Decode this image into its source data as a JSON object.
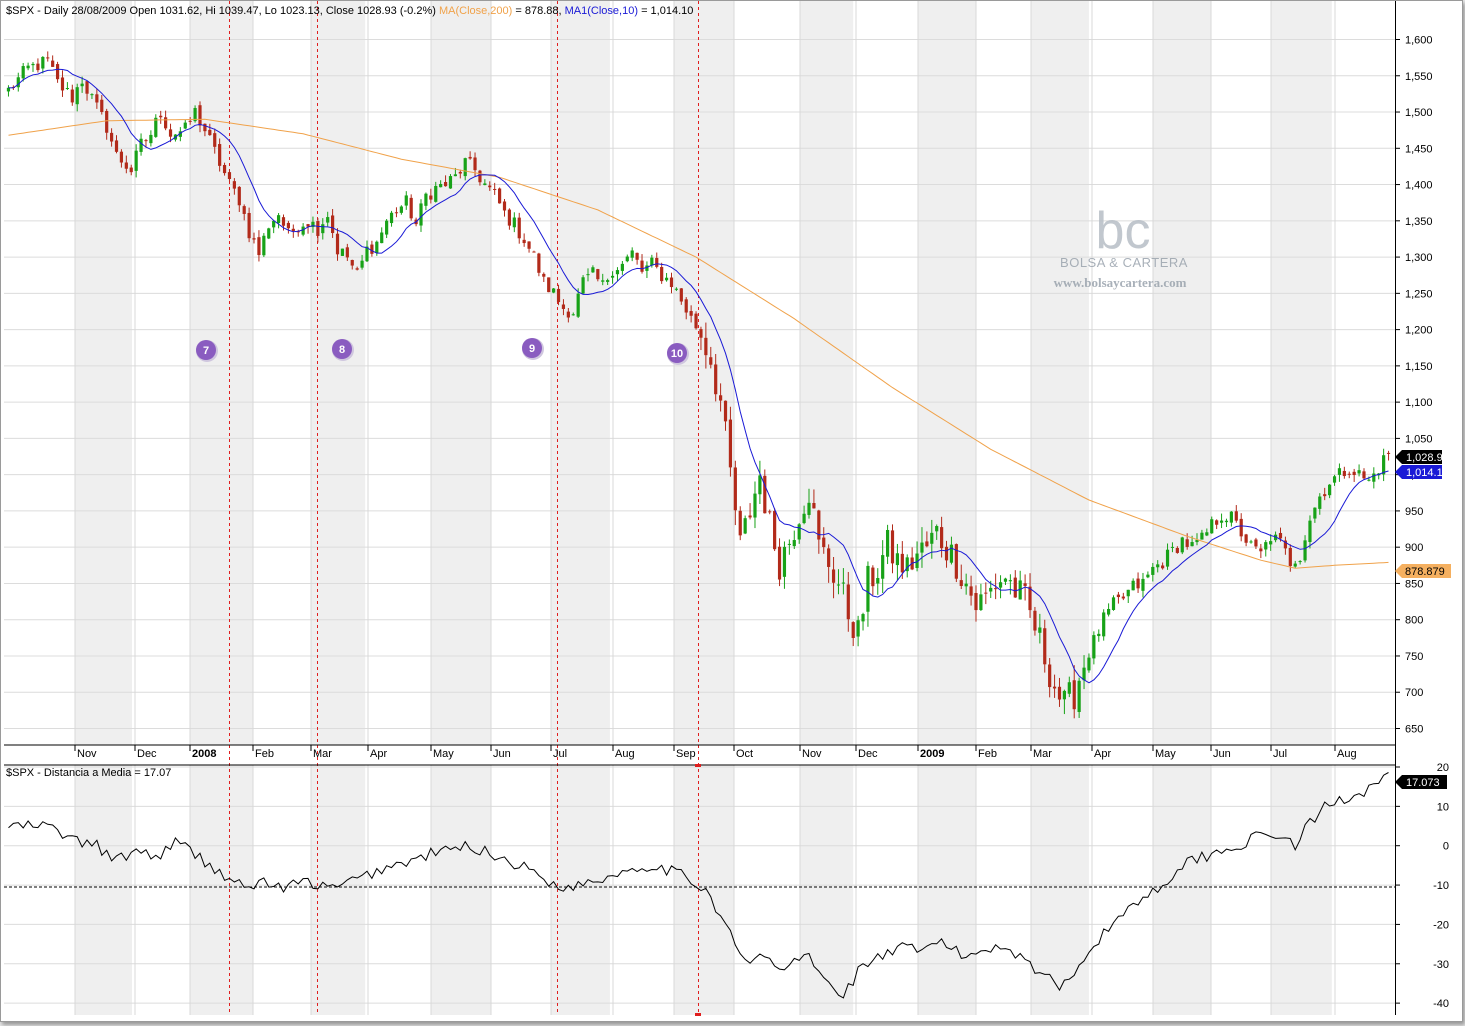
{
  "chart_data": [
    {
      "type": "candlestick",
      "title": "$SPX - Daily 28/08/2009 Open 1031.62, Hi 1039.47, Lo 1023.13, Close 1028.93 (-0.2%)",
      "symbol": "$SPX",
      "date": "28/08/2009",
      "last_bar": {
        "open": 1031.62,
        "high": 1039.47,
        "low": 1023.13,
        "close": 1028.93,
        "change_pct": -0.2
      },
      "legend": {
        "header": "$SPX - Daily 28/08/2009 Open 1031.62, Hi 1039.47, Lo 1023.13, Close 1028.93 (-0.2%)",
        "ma200": "MA(Close,200)",
        "ma200_value": "= 878.88,",
        "ma10": "MA1(Close,10)",
        "ma10_value": "= 1,014.10"
      },
      "ylim": [
        630,
        1620
      ],
      "yticks": [
        650,
        700,
        750,
        800,
        850,
        900,
        950,
        1000,
        1050,
        1100,
        1150,
        1200,
        1250,
        1300,
        1350,
        1400,
        1450,
        1500,
        1550,
        1600
      ],
      "ytick_labels": [
        "650",
        "700",
        "750",
        "800",
        "850",
        "900",
        "950",
        "1,000",
        "1,050",
        "1,100",
        "1,150",
        "1,200",
        "1,250",
        "1,300",
        "1,350",
        "1,400",
        "1,450",
        "1,500",
        "1,550",
        "1,600"
      ],
      "x_months": [
        {
          "label": "Nov",
          "bold": false
        },
        {
          "label": "Dec",
          "bold": false
        },
        {
          "label": "2008",
          "bold": true
        },
        {
          "label": "Feb",
          "bold": false
        },
        {
          "label": "Mar",
          "bold": false
        },
        {
          "label": "Apr",
          "bold": false
        },
        {
          "label": "May",
          "bold": false
        },
        {
          "label": "Jun",
          "bold": false
        },
        {
          "label": "Jul",
          "bold": false
        },
        {
          "label": "Aug",
          "bold": false
        },
        {
          "label": "Sep",
          "bold": false
        },
        {
          "label": "Oct",
          "bold": false
        },
        {
          "label": "Nov",
          "bold": false
        },
        {
          "label": "Dec",
          "bold": false
        },
        {
          "label": "2009",
          "bold": true
        },
        {
          "label": "Feb",
          "bold": false
        },
        {
          "label": "Mar",
          "bold": false
        },
        {
          "label": "Apr",
          "bold": false
        },
        {
          "label": "May",
          "bold": false
        },
        {
          "label": "Jun",
          "bold": false
        },
        {
          "label": "Jul",
          "bold": false
        },
        {
          "label": "Aug",
          "bold": false
        }
      ],
      "close_path": [
        [
          0,
          1530
        ],
        [
          4,
          1560
        ],
        [
          8,
          1570
        ],
        [
          10,
          1540
        ],
        [
          13,
          1520
        ],
        [
          15,
          1545
        ],
        [
          18,
          1505
        ],
        [
          20,
          1480
        ],
        [
          22,
          1440
        ],
        [
          25,
          1420
        ],
        [
          27,
          1455
        ],
        [
          29,
          1470
        ],
        [
          31,
          1500
        ],
        [
          33,
          1470
        ],
        [
          36,
          1475
        ],
        [
          38,
          1500
        ],
        [
          40,
          1475
        ],
        [
          42,
          1445
        ],
        [
          45,
          1400
        ],
        [
          47,
          1380
        ],
        [
          49,
          1335
        ],
        [
          51,
          1305
        ],
        [
          53,
          1345
        ],
        [
          55,
          1360
        ],
        [
          57,
          1330
        ],
        [
          59,
          1345
        ],
        [
          61,
          1350
        ],
        [
          63,
          1340
        ],
        [
          65,
          1360
        ],
        [
          67,
          1310
        ],
        [
          69,
          1300
        ],
        [
          71,
          1275
        ],
        [
          73,
          1310
        ],
        [
          75,
          1320
        ],
        [
          77,
          1350
        ],
        [
          79,
          1365
        ],
        [
          81,
          1375
        ],
        [
          83,
          1345
        ],
        [
          85,
          1385
        ],
        [
          87,
          1395
        ],
        [
          89,
          1400
        ],
        [
          91,
          1410
        ],
        [
          93,
          1430
        ],
        [
          95,
          1420
        ],
        [
          97,
          1400
        ],
        [
          99,
          1385
        ],
        [
          101,
          1360
        ],
        [
          103,
          1345
        ],
        [
          105,
          1325
        ],
        [
          107,
          1300
        ],
        [
          109,
          1265
        ],
        [
          111,
          1250
        ],
        [
          113,
          1230
        ],
        [
          115,
          1225
        ],
        [
          117,
          1265
        ],
        [
          119,
          1275
        ],
        [
          121,
          1260
        ],
        [
          123,
          1285
        ],
        [
          125,
          1290
        ],
        [
          127,
          1305
        ],
        [
          129,
          1280
        ],
        [
          131,
          1290
        ],
        [
          133,
          1275
        ],
        [
          135,
          1265
        ],
        [
          137,
          1240
        ],
        [
          139,
          1215
        ],
        [
          141,
          1195
        ],
        [
          143,
          1160
        ],
        [
          145,
          1100
        ],
        [
          147,
          1000
        ],
        [
          149,
          900
        ],
        [
          151,
          950
        ],
        [
          153,
          1000
        ],
        [
          155,
          930
        ],
        [
          157,
          880
        ],
        [
          159,
          910
        ],
        [
          161,
          950
        ],
        [
          163,
          980
        ],
        [
          165,
          900
        ],
        [
          167,
          880
        ],
        [
          169,
          850
        ],
        [
          171,
          810
        ],
        [
          173,
          780
        ],
        [
          175,
          850
        ],
        [
          177,
          870
        ],
        [
          179,
          900
        ],
        [
          181,
          880
        ],
        [
          183,
          870
        ],
        [
          185,
          890
        ],
        [
          187,
          900
        ],
        [
          189,
          920
        ],
        [
          191,
          900
        ],
        [
          193,
          880
        ],
        [
          195,
          850
        ],
        [
          197,
          820
        ],
        [
          199,
          830
        ],
        [
          201,
          850
        ],
        [
          203,
          860
        ],
        [
          205,
          840
        ],
        [
          207,
          825
        ],
        [
          209,
          790
        ],
        [
          211,
          750
        ],
        [
          213,
          710
        ],
        [
          215,
          680
        ],
        [
          217,
          700
        ],
        [
          219,
          740
        ],
        [
          221,
          770
        ],
        [
          223,
          800
        ],
        [
          225,
          820
        ],
        [
          227,
          830
        ],
        [
          229,
          845
        ],
        [
          231,
          850
        ],
        [
          233,
          870
        ],
        [
          235,
          880
        ],
        [
          237,
          895
        ],
        [
          239,
          910
        ],
        [
          241,
          900
        ],
        [
          243,
          910
        ],
        [
          245,
          930
        ],
        [
          247,
          945
        ],
        [
          249,
          940
        ],
        [
          251,
          920
        ],
        [
          253,
          900
        ],
        [
          255,
          890
        ],
        [
          257,
          915
        ],
        [
          259,
          905
        ],
        [
          261,
          880
        ],
        [
          263,
          890
        ],
        [
          265,
          940
        ],
        [
          267,
          970
        ],
        [
          269,
          990
        ],
        [
          271,
          1000
        ],
        [
          273,
          1010
        ],
        [
          275,
          1000
        ],
        [
          277,
          990
        ],
        [
          279,
          1010
        ],
        [
          281,
          1030
        ]
      ],
      "ma200_path": [
        [
          0,
          1468
        ],
        [
          20,
          1488
        ],
        [
          40,
          1490
        ],
        [
          60,
          1470
        ],
        [
          80,
          1435
        ],
        [
          100,
          1410
        ],
        [
          120,
          1365
        ],
        [
          140,
          1300
        ],
        [
          160,
          1215
        ],
        [
          180,
          1120
        ],
        [
          200,
          1035
        ],
        [
          220,
          965
        ],
        [
          240,
          915
        ],
        [
          255,
          882
        ],
        [
          262,
          871
        ],
        [
          270,
          875
        ],
        [
          281,
          879
        ]
      ],
      "markers": [
        {
          "label": "7",
          "color": "#8a5cc0"
        },
        {
          "label": "8",
          "color": "#8a5cc0"
        },
        {
          "label": "9",
          "color": "#8a5cc0"
        },
        {
          "label": "10",
          "color": "#8a5cc0"
        }
      ],
      "last_close_badge": "1,028.93",
      "ma10_badge": "1,014.1",
      "ma200_badge": "878.879",
      "colors": {
        "up": "#18a218",
        "down": "#b22a1a",
        "ma200": "#f0a24a",
        "ma10": "#1a1ad6",
        "grid": "#dcdcdc",
        "shade": "#eeeeee",
        "vline": "#e01e1e"
      }
    },
    {
      "type": "line",
      "title": "$SPX - Distancia a Media = 17.07",
      "ylim": [
        -42,
        20
      ],
      "yticks": [
        -40,
        -30,
        -20,
        -10,
        0,
        10,
        20
      ],
      "ytick_labels": [
        "-40",
        "-30",
        "-20",
        "-10",
        "0",
        "10",
        "20"
      ],
      "threshold": -10.5,
      "last_value_badge": "17.073",
      "series_path": [
        [
          0,
          5
        ],
        [
          8,
          5
        ],
        [
          14,
          1
        ],
        [
          18,
          0
        ],
        [
          22,
          -4
        ],
        [
          26,
          -1
        ],
        [
          30,
          -3
        ],
        [
          34,
          1
        ],
        [
          38,
          -2
        ],
        [
          42,
          -6
        ],
        [
          46,
          -9
        ],
        [
          48,
          -11
        ],
        [
          52,
          -9
        ],
        [
          56,
          -11
        ],
        [
          60,
          -9
        ],
        [
          63,
          -10
        ],
        [
          66,
          -11
        ],
        [
          70,
          -9
        ],
        [
          74,
          -7
        ],
        [
          78,
          -5
        ],
        [
          82,
          -4
        ],
        [
          86,
          -2
        ],
        [
          90,
          -1
        ],
        [
          94,
          0
        ],
        [
          98,
          -2
        ],
        [
          102,
          -4
        ],
        [
          106,
          -6
        ],
        [
          110,
          -9
        ],
        [
          114,
          -11
        ],
        [
          118,
          -9
        ],
        [
          122,
          -8
        ],
        [
          126,
          -6
        ],
        [
          130,
          -5
        ],
        [
          134,
          -6
        ],
        [
          138,
          -8
        ],
        [
          142,
          -11
        ],
        [
          146,
          -20
        ],
        [
          150,
          -30
        ],
        [
          154,
          -28
        ],
        [
          158,
          -32
        ],
        [
          162,
          -27
        ],
        [
          166,
          -34
        ],
        [
          170,
          -38
        ],
        [
          174,
          -30
        ],
        [
          178,
          -28
        ],
        [
          182,
          -26
        ],
        [
          186,
          -27
        ],
        [
          190,
          -24
        ],
        [
          194,
          -28
        ],
        [
          198,
          -27
        ],
        [
          202,
          -25
        ],
        [
          206,
          -28
        ],
        [
          210,
          -32
        ],
        [
          214,
          -36
        ],
        [
          218,
          -30
        ],
        [
          222,
          -24
        ],
        [
          226,
          -18
        ],
        [
          230,
          -14
        ],
        [
          234,
          -11
        ],
        [
          238,
          -6
        ],
        [
          242,
          -3
        ],
        [
          246,
          -2
        ],
        [
          250,
          0
        ],
        [
          254,
          2
        ],
        [
          258,
          3
        ],
        [
          262,
          0
        ],
        [
          264,
          4
        ],
        [
          268,
          10
        ],
        [
          272,
          12
        ],
        [
          276,
          14
        ],
        [
          280,
          18
        ]
      ]
    }
  ],
  "watermark": {
    "logo": "bc",
    "brand": "BOLSA & CARTERA",
    "url": "www.bolsaycartera.com"
  }
}
